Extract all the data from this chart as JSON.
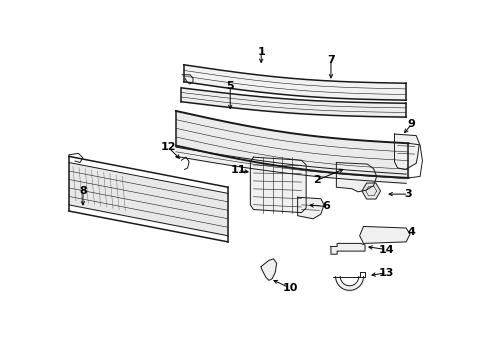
{
  "bg_color": "#ffffff",
  "line_color": "#1a1a1a",
  "text_color": "#000000",
  "lw_main": 1.1,
  "lw_thin": 0.7,
  "lw_hair": 0.4
}
